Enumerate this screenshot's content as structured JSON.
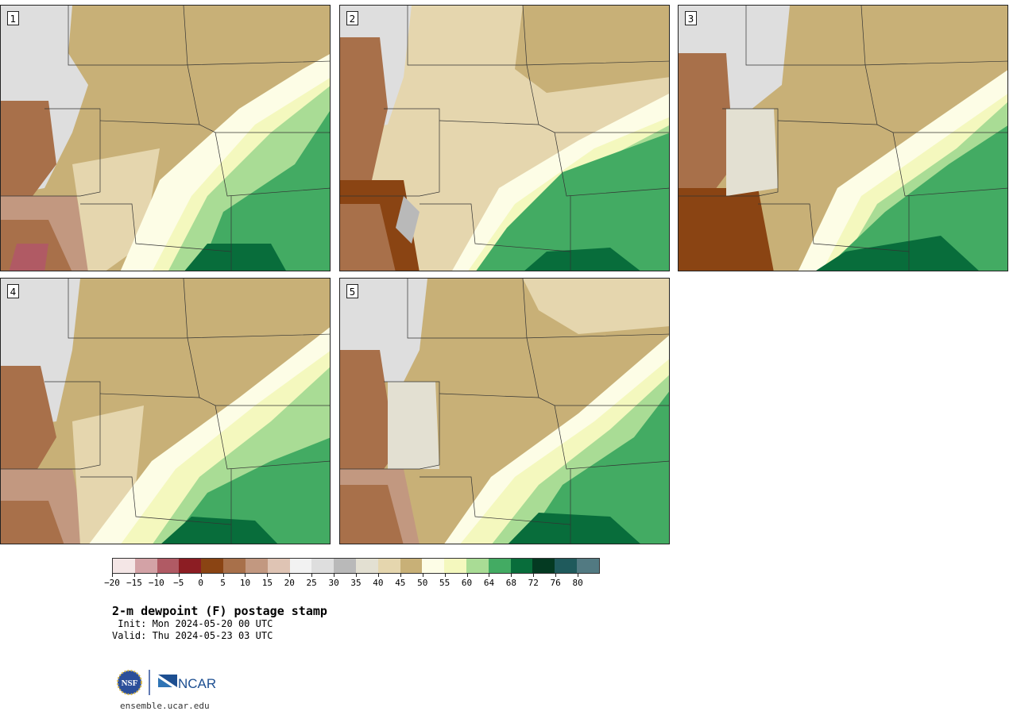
{
  "panels": [
    {
      "label": "1"
    },
    {
      "label": "2"
    },
    {
      "label": "3"
    },
    {
      "label": "4"
    },
    {
      "label": "5"
    }
  ],
  "colorbar": {
    "colors": [
      "#f4e6e6",
      "#d3a2a6",
      "#b05a64",
      "#8c1d23",
      "#8a4413",
      "#a8704a",
      "#c29880",
      "#dfc4b4",
      "#f2f2f2",
      "#dedede",
      "#b9b9b9",
      "#e3e0d2",
      "#e5d6ae",
      "#c8b077",
      "#fdfde6",
      "#f4f8be",
      "#a9dc95",
      "#43ab63",
      "#086d3b",
      "#043a22",
      "#1f5a5c",
      "#527a82"
    ],
    "tick_labels": [
      "−20",
      "−15",
      "−10",
      "−5",
      "0",
      "5",
      "10",
      "15",
      "20",
      "25",
      "30",
      "35",
      "40",
      "45",
      "50",
      "55",
      "60",
      "64",
      "68",
      "72",
      "76",
      "80"
    ]
  },
  "title": "2-m dewpoint (F) postage stamp",
  "init_line": " Init: Mon 2024-05-20 00 UTC",
  "valid_line": "Valid: Thu 2024-05-23 03 UTC",
  "logos": {
    "nsf": "NSF",
    "ncar": "NCAR"
  },
  "site": "ensemble.ucar.edu"
}
